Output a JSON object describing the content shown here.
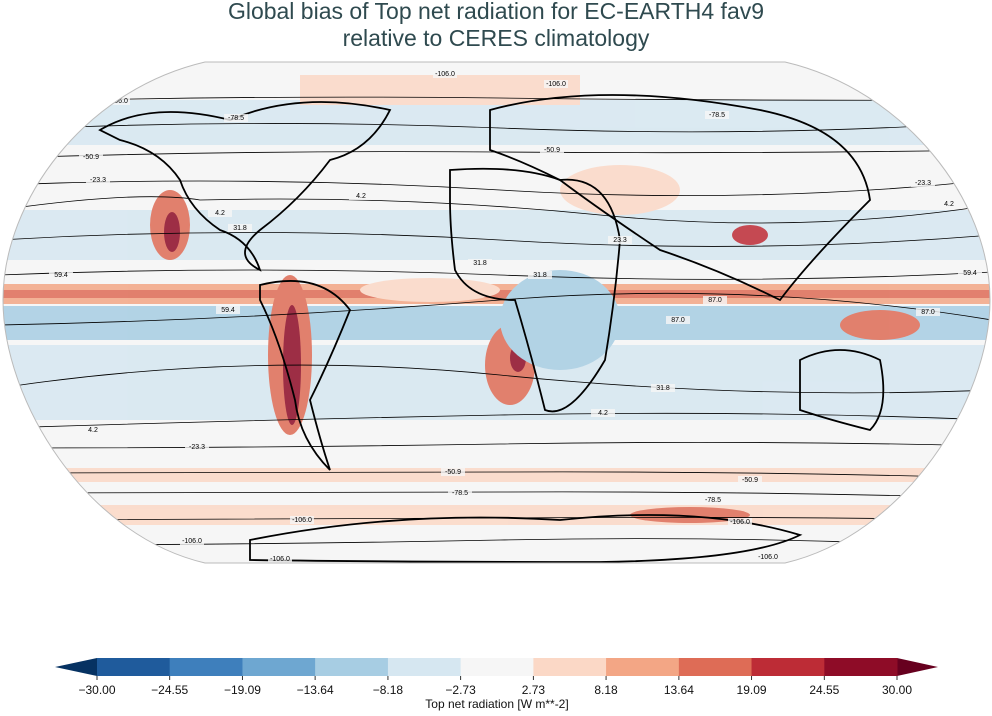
{
  "title_lines": [
    "Global bias of Top net radiation for EC-EARTH4 fav9",
    "relative to CERES climatology"
  ],
  "contour_labels": [
    "-106.0",
    "-106.0",
    "-106.0",
    "-78.5",
    "-78.5",
    "-50.9",
    "-50.9",
    "-23.3",
    "-23.3",
    "4.2",
    "4.2",
    "4.2",
    "31.8",
    "31.8",
    "59.4",
    "59.4",
    "59.4",
    "87.0",
    "87.0",
    "4.2",
    "31.8",
    "-23.3",
    "-50.9",
    "-50.9",
    "-78.5",
    "-78.5",
    "-106.0",
    "-106.0",
    "-106.0",
    "-106.0",
    "-106.0",
    "31.8",
    "4.2",
    "23.3",
    "87.0"
  ],
  "colorbar": {
    "ticks": [
      {
        "value": -30,
        "label": "−30.00"
      },
      {
        "value": -24.55,
        "label": "−24.55"
      },
      {
        "value": -19.09,
        "label": "−19.09"
      },
      {
        "value": -13.64,
        "label": "−13.64"
      },
      {
        "value": -8.18,
        "label": "−8.18"
      },
      {
        "value": -2.73,
        "label": "−2.73"
      },
      {
        "value": 2.73,
        "label": "2.73"
      },
      {
        "value": 8.18,
        "label": "8.18"
      },
      {
        "value": 13.64,
        "label": "13.64"
      },
      {
        "value": 19.09,
        "label": "19.09"
      },
      {
        "value": 24.55,
        "label": "24.55"
      },
      {
        "value": 30,
        "label": "30.00"
      }
    ],
    "colors": [
      "#1f5b9c",
      "#3e7fbc",
      "#6ea7d1",
      "#a7cde3",
      "#d6e7f1",
      "#f6f6f6",
      "#fbd8c6",
      "#f3a685",
      "#de6c56",
      "#bd2c36",
      "#8e0c27"
    ],
    "under_color": "#063262",
    "over_color": "#67001f",
    "label": "Top net radiation [W m**-2]"
  }
}
